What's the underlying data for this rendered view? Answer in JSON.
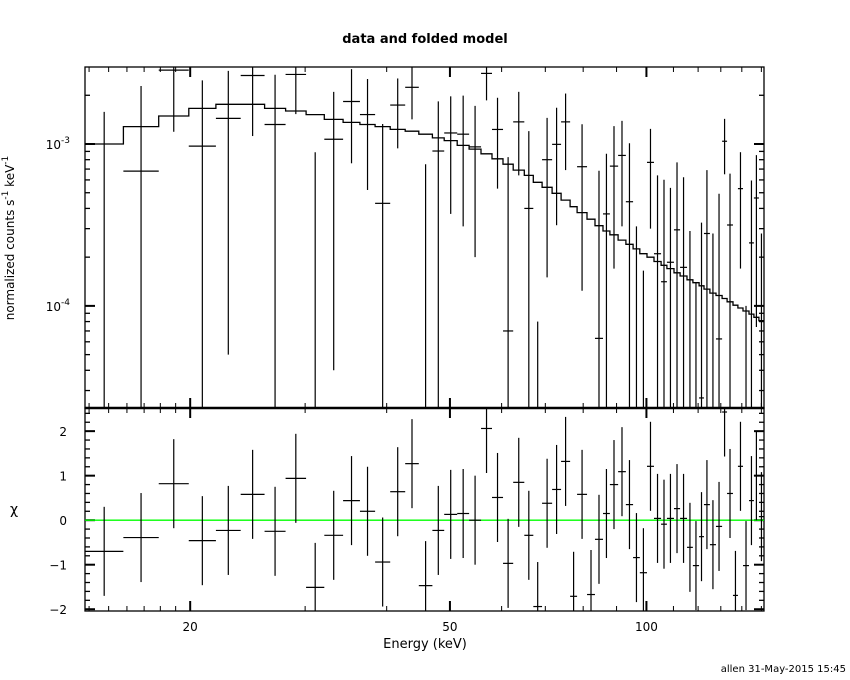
{
  "title": "data and folded model",
  "footer": "allen 31-May-2015 15:45",
  "colors": {
    "foreground": "#000000",
    "zero_line": "#00ff00",
    "background": "#ffffff"
  },
  "chart_data": [
    {
      "type": "scatter",
      "panel": "top",
      "ylabel_parts": [
        "normalized counts s",
        "-1",
        " keV",
        "-1"
      ],
      "xscale": "log",
      "yscale": "log",
      "xlim": [
        13.8,
        151.4
      ],
      "ylim": [
        2.34e-05,
        0.00299
      ],
      "yticks": [
        {
          "value": 0.001,
          "base": "10",
          "exp": "-3"
        },
        {
          "value": 0.0001,
          "base": "10",
          "exp": "-4"
        }
      ],
      "grid": false,
      "bin_edges_keV": [
        13.8,
        15.8,
        17.9,
        19.9,
        21.9,
        23.9,
        26.0,
        28.0,
        30.1,
        32.1,
        34.3,
        36.4,
        38.4,
        40.5,
        42.7,
        44.8,
        47.0,
        49.0,
        51.3,
        53.5,
        55.8,
        58.0,
        60.3,
        62.5,
        65.0,
        67.1,
        69.2,
        71.7,
        74.0,
        76.4,
        78.3,
        81.1,
        83.4,
        85.8,
        87.9,
        90.5,
        93.0,
        95.4,
        97.7,
        100.2,
        102.7,
        105.3,
        107.5,
        110.2,
        112.6,
        115.4,
        117.8,
        120.4,
        122.5,
        125.1,
        127.8,
        130.6,
        132.9,
        135.7,
        138.1,
        140.6,
        143.6,
        146.1,
        148.7,
        151.4
      ],
      "data": [
        -0.00035,
        0.00068,
        0.00286,
        0.00097,
        0.00144,
        0.00265,
        0.00132,
        0.00269,
        -0.00035,
        0.00107,
        0.00183,
        0.00152,
        0.00043,
        0.00174,
        0.00224,
        -0.0001,
        0.000905,
        0.00117,
        0.00115,
        0.00096,
        0.00273,
        0.00123,
        7e-05,
        0.00137,
        0.0004,
        -0.00052,
        0.0008,
        0.000995,
        0.00137,
        -0.00058,
        0.000724,
        -0.00054,
        6.3e-05,
        0.00037,
        0.00073,
        0.00085,
        0.00044,
        -0.00013,
        -0.000155,
        0.00077,
        0.00021,
        0.000141,
        0.000186,
        0.000295,
        0.000173,
        -6e-05,
        -0.00021,
        2.7e-05,
        0.00028,
        -5e-05,
        6.25e-05,
        0.00104,
        0.000316,
        -0.0004,
        0.00053,
        -0.0002,
        0.000245,
        0.000464,
        0.0001
      ],
      "error": [
        0.00193,
        0.0016,
        0.00167,
        0.0015,
        0.00139,
        0.00153,
        0.00136,
        0.00116,
        0.00124,
        0.00103,
        0.00107,
        0.001,
        0.0009,
        0.0008,
        0.00082,
        0.00085,
        0.00093,
        0.0008,
        0.00084,
        0.00076,
        0.00087,
        0.0007,
        0.00076,
        0.00073,
        0.0008,
        0.0006,
        0.00065,
        0.00068,
        0.00068,
        0.0006,
        0.0006,
        0.00055,
        0.00062,
        0.0005,
        0.00056,
        0.00054,
        0.00057,
        0.00044,
        0.00032,
        0.00047,
        0.00043,
        0.00046,
        0.00035,
        0.000475,
        0.00045,
        0.00035,
        0.00035,
        0.0003,
        0.00041,
        0.00033,
        0.00043,
        0.00039,
        0.00034,
        0.0003,
        0.00036,
        0.0003,
        0.00035,
        0.00039,
        0.00018
      ],
      "model": [
        0.001,
        0.00128,
        0.00149,
        0.00166,
        0.00176,
        0.00176,
        0.00166,
        0.0016,
        0.00152,
        0.00142,
        0.00136,
        0.00132,
        0.00128,
        0.00123,
        0.0012,
        0.00115,
        0.00109,
        0.00105,
        0.00098,
        0.00093,
        0.00087,
        0.00081,
        0.00075,
        0.00069,
        0.00064,
        0.00058,
        0.00054,
        0.000496,
        0.00045,
        0.00041,
        0.000377,
        0.000343,
        0.000313,
        0.00029,
        0.000275,
        0.000255,
        0.00024,
        0.000225,
        0.00021,
        0.0002,
        0.000188,
        0.000178,
        0.00017,
        0.00016,
        0.000153,
        0.000145,
        0.000139,
        0.000133,
        0.000127,
        0.00012,
        0.000116,
        0.000111,
        0.000106,
        0.000101,
        9.7e-05,
        9.3e-05,
        8.9e-05,
        8.5e-05,
        8.1e-05
      ]
    },
    {
      "type": "scatter",
      "panel": "bottom",
      "ylabel": "χ",
      "xlabel": "Energy (keV)",
      "xscale": "log",
      "xlim": [
        13.8,
        151.4
      ],
      "ylim": [
        -2.04,
        2.52
      ],
      "xticks": [
        {
          "value": 20,
          "label": "20"
        },
        {
          "value": 50,
          "label": "50"
        },
        {
          "value": 100,
          "label": "100"
        }
      ],
      "yticks": [
        {
          "value": -2,
          "label": "−2"
        },
        {
          "value": -1,
          "label": "−1"
        },
        {
          "value": 0,
          "label": "0"
        },
        {
          "value": 1,
          "label": "1"
        },
        {
          "value": 2,
          "label": "2"
        }
      ],
      "zero_line": 0,
      "grid": false,
      "chi": [
        -0.7,
        -0.39,
        0.82,
        -0.46,
        -0.23,
        0.58,
        -0.25,
        0.94,
        -1.51,
        -0.34,
        0.44,
        0.2,
        -0.94,
        0.64,
        1.27,
        -1.47,
        -0.23,
        0.13,
        0.15,
        0.0,
        2.06,
        0.51,
        -0.97,
        0.85,
        -0.34,
        -1.94,
        0.38,
        0.69,
        1.32,
        -1.71,
        0.58,
        -1.67,
        -0.43,
        0.15,
        0.8,
        1.09,
        0.35,
        -0.84,
        -1.18,
        1.21,
        0.04,
        -0.09,
        0.04,
        0.26,
        0.04,
        -0.61,
        -1.02,
        -0.37,
        0.35,
        -0.55,
        -0.14,
        2.43,
        0.6,
        -1.69,
        1.21,
        -1.02,
        0.44,
        1.0,
        0.08
      ]
    }
  ]
}
